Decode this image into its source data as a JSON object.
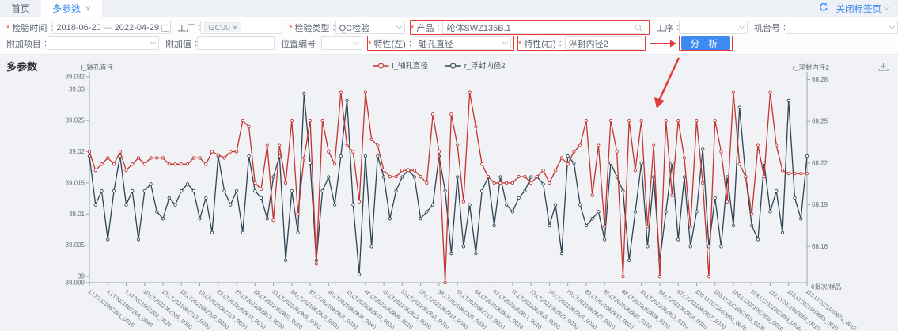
{
  "tabbar": {
    "home_tab": "首页",
    "active_tab": "多参数",
    "close_tab_icon": "×",
    "close_tabs_label": "关闭标签页"
  },
  "filters": {
    "inspect_time": {
      "label": "检验时间",
      "from": "2018-06-20",
      "separator": "—",
      "to": "2022-04-29"
    },
    "factory": {
      "label": "工厂",
      "tag": "GC00",
      "tag_close": "×"
    },
    "inspect_type": {
      "label": "检验类型",
      "value": "QC检验"
    },
    "product": {
      "label": "产品",
      "value": "轮体SWZ135B.1"
    },
    "process": {
      "label": "工序",
      "value": ""
    },
    "machine": {
      "label": "机台号",
      "value": ""
    },
    "extra_item": {
      "label": "附加项目",
      "value": ""
    },
    "extra_value": {
      "label": "附加值",
      "value": ""
    },
    "position_no": {
      "label": "位置编号",
      "value": ""
    },
    "feature_left": {
      "label": "特性(左)",
      "value": "轴孔直径"
    },
    "feature_right": {
      "label": "特性(右)",
      "value": "浮封内径2"
    },
    "analyze_button": "分 析"
  },
  "section_title": "多参数",
  "icons": {
    "refresh": "refresh-icon",
    "calendar": "calendar-icon",
    "search": "search-icon",
    "download": "download-icon",
    "chevron": "chevron-down-icon",
    "close": "close-icon"
  },
  "colors": {
    "accent_blue": "#3d8bf2",
    "annotation_red": "#e23b3b",
    "series_left": "#c23531",
    "series_right": "#2f4554"
  },
  "chart_data": {
    "type": "line",
    "title": "",
    "legend": [
      "l_轴孔直径",
      "r_浮封内径2"
    ],
    "legend_position": "top-center",
    "grid": false,
    "x_axis": {
      "name": "6批次/样品",
      "label_every": 3,
      "labels": [
        "1,LT2021062201_0010",
        "4,LT2021062204_0040",
        "7,LT2021062202_0020",
        "10,LT2021062205_0050",
        "13,LT2021062213_0030",
        "16,LT2021062203_0030",
        "19,LT2021062213_0030",
        "22,LT2021062802_0030",
        "25,LT2021062813_0030",
        "28,LT2021062802_0010",
        "31,LT2021062805_0010",
        "34,LT2021062803_0030",
        "37,LT2021062801_0030",
        "40,LT2021062804_0040",
        "43,LT2021062802_0030",
        "46,LT2021062805_0010",
        "49,LT2021062813_0010",
        "52,LT2021062811_0010",
        "55,LT2021062814_0040",
        "58,LT2021062205_0030",
        "61,LT2021062213_0030",
        "64,LT2021062804_0010",
        "67,LT2021062812_0010",
        "70,LT2021062815_0010",
        "73,LT2021062823_0030",
        "76,LT2021062826_0010",
        "79,LT2021062829_0010",
        "82,LT2021062832_0010",
        "85,LT2021062835_0110",
        "88,LT2021062838_0110",
        "91,LT2021062851_0110",
        "94,LT2021062854_0010",
        "97,LT2021062857_0070",
        "100,LT2021062860_0070",
        "103,LT2021062853_0100",
        "106,LT2021062856_0010",
        "109,LT2021062859_0010",
        "112,LT2021062862_0010",
        "115,LT2021062865_0010",
        "118,LT2021062871_0010"
      ]
    },
    "y_axis_left": {
      "name": "l_轴孔直径",
      "min": 38.999,
      "max": 39.032,
      "ticks": [
        39.032,
        39.03,
        39.025,
        39.02,
        39.015,
        39.01,
        39.005,
        39,
        38.999
      ]
    },
    "y_axis_right": {
      "name": "r_浮封内径2",
      "min": 68.134,
      "max": 68.282,
      "ticks": [
        68.28,
        68.25,
        68.22,
        68.19,
        68.16
      ]
    },
    "series": [
      {
        "name": "l_轴孔直径",
        "axis": "left",
        "color": "#c23531",
        "values": [
          39.02,
          39.017,
          39.018,
          39.019,
          39.018,
          39.02,
          39.017,
          39.018,
          39.019,
          39.018,
          39.019,
          39.019,
          39.019,
          39.018,
          39.018,
          39.018,
          39.018,
          39.019,
          39.019,
          39.018,
          39.02,
          39.0195,
          39.019,
          39.02,
          39.02,
          39.025,
          39.024,
          39.015,
          39.014,
          39.021,
          39.009,
          39.021,
          39.015,
          39.025,
          39.01,
          39.019,
          39.025,
          39.002,
          39.025,
          39.02,
          39.018,
          39.0295,
          39.021,
          39.02,
          39.012,
          39.0295,
          39.022,
          39.021,
          39.017,
          39.016,
          39.016,
          39.017,
          39.017,
          39.017,
          39.016,
          39.015,
          39.026,
          39.02,
          38.999,
          39.026,
          39.021,
          39.012,
          39.0295,
          39.024,
          39.018,
          39.016,
          39.015,
          39.015,
          39.015,
          39.015,
          39.016,
          39.016,
          39.015,
          39.016,
          39.017,
          39.015,
          39.017,
          39.019,
          39.018,
          39.02,
          39.021,
          39.025,
          39.013,
          39.021,
          39.008,
          39.025,
          39.02,
          39.0,
          39.025,
          39.017,
          39.025,
          39.008,
          39.021,
          39.0,
          39.025,
          39.013,
          39.025,
          39.019,
          39.008,
          39.025,
          39.015,
          39.0,
          39.025,
          39.02,
          39.012,
          39.0295,
          39.018,
          39.016,
          39.01,
          39.021,
          39.016,
          39.0295,
          39.021,
          39.017,
          39.0165,
          39.0165,
          39.0165,
          39.0165
        ]
      },
      {
        "name": "r_浮封内径2",
        "axis": "right",
        "color": "#2f4554",
        "values": [
          68.225,
          68.19,
          68.2,
          68.165,
          68.2,
          68.225,
          68.19,
          68.2,
          68.165,
          68.2,
          68.205,
          68.185,
          68.18,
          68.195,
          68.19,
          68.2,
          68.205,
          68.2,
          68.18,
          68.195,
          68.17,
          68.225,
          68.2,
          68.19,
          68.2,
          68.17,
          68.225,
          68.2,
          68.195,
          68.18,
          68.21,
          68.225,
          68.15,
          68.2,
          68.17,
          68.27,
          68.22,
          68.15,
          68.2,
          68.21,
          68.19,
          68.225,
          68.265,
          68.19,
          68.14,
          68.225,
          68.16,
          68.225,
          68.21,
          68.18,
          68.2,
          68.21,
          68.215,
          68.21,
          68.18,
          68.185,
          68.19,
          68.225,
          68.2,
          68.155,
          68.21,
          68.16,
          68.19,
          68.155,
          68.2,
          68.21,
          68.175,
          68.21,
          68.19,
          68.185,
          68.195,
          68.2,
          68.21,
          68.21,
          68.205,
          68.175,
          68.19,
          68.155,
          68.225,
          68.22,
          68.19,
          68.175,
          68.18,
          68.185,
          68.165,
          68.22,
          68.21,
          68.2,
          68.15,
          68.185,
          68.22,
          68.16,
          68.21,
          68.15,
          68.185,
          68.22,
          68.165,
          68.21,
          68.16,
          68.185,
          68.23,
          68.16,
          68.195,
          68.16,
          68.21,
          68.175,
          68.26,
          68.21,
          68.175,
          68.165,
          68.22,
          68.185,
          68.2,
          68.17,
          68.265,
          68.195,
          68.18,
          68.225
        ]
      }
    ]
  }
}
